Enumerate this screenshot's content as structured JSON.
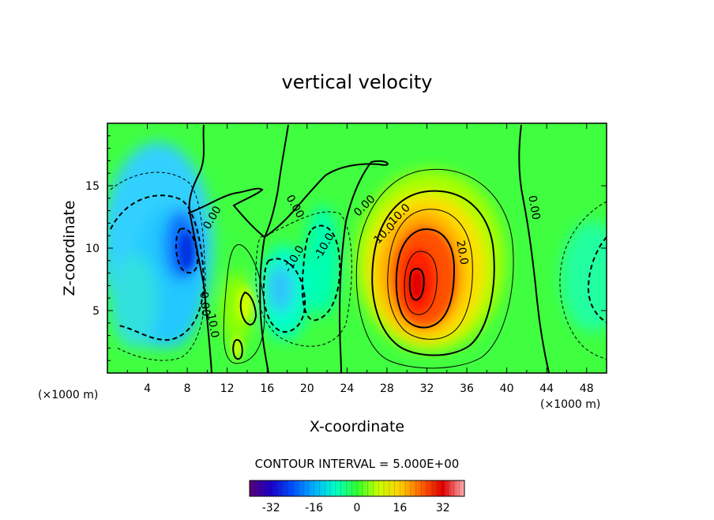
{
  "chart_data": {
    "type": "heatmap",
    "title": "vertical velocity",
    "xlabel": "X-coordinate",
    "ylabel": "Z-coordinate",
    "x_unit": "(×1000 m)",
    "z_unit": "(×1000 m)",
    "xlim": [
      0,
      50
    ],
    "ylim": [
      0,
      20
    ],
    "x_ticks": [
      "4",
      "8",
      "12",
      "16",
      "20",
      "24",
      "28",
      "32",
      "36",
      "40",
      "44",
      "48"
    ],
    "y_ticks": [
      "5",
      "10",
      "15"
    ],
    "contour_interval_text": "CONTOUR INTERVAL = 5.000E+00",
    "contour_labels": [
      "0.00",
      "0.00",
      "0.00",
      "0.00",
      "0.00",
      "10.0",
      "-10.0",
      "20.0",
      "10.0",
      "-10.0",
      "-10.0"
    ],
    "colorbar": {
      "range": [
        -40,
        40
      ],
      "tick_labels": [
        "-32",
        "-16",
        "0",
        "16",
        "32"
      ],
      "tick_values": [
        -32,
        -16,
        0,
        16,
        32
      ],
      "colors": [
        "#5a0078",
        "#1a00c8",
        "#0050ff",
        "#00b0ff",
        "#00ffc8",
        "#30ff30",
        "#c8ff00",
        "#ffd000",
        "#ff6000",
        "#e00000",
        "#ffb0b0"
      ]
    },
    "features": [
      {
        "name": "updraft core",
        "x": 31,
        "z": 7.5,
        "peak": 30
      },
      {
        "name": "downdraft core",
        "x": 8,
        "z": 10,
        "peak": -30
      },
      {
        "name": "downdraft",
        "x": 17,
        "z": 7,
        "peak": -12
      },
      {
        "name": "updraft",
        "x": 13.5,
        "z": 5.5,
        "peak": 12
      }
    ]
  }
}
